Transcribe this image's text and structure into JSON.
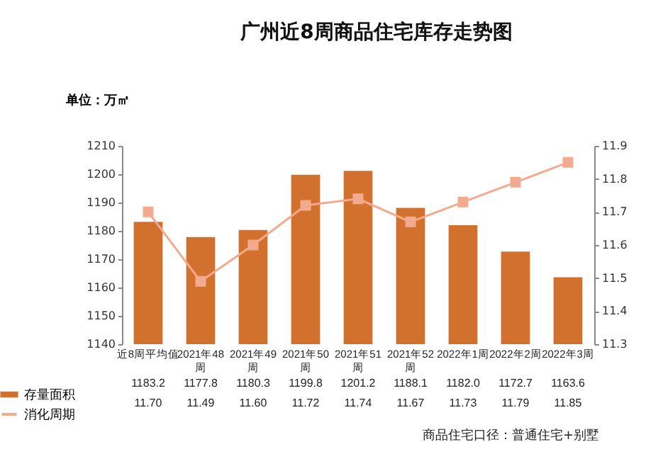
{
  "chart_data": {
    "type": "bar",
    "title": "广州近8周商品住宅库存走势图",
    "ylabel": "单位：万㎡",
    "categories": [
      "近8周平均值",
      "2021年48周",
      "2021年49周",
      "2021年50周",
      "2021年51周",
      "2021年52周",
      "2022年1周",
      "2022年2周",
      "2022年3周"
    ],
    "series": [
      {
        "name": "存量面积",
        "color": "#d2702e",
        "values": [
          1183.2,
          1177.8,
          1180.3,
          1199.8,
          1201.2,
          1188.1,
          1182.0,
          1172.7,
          1163.6
        ],
        "value_labels": [
          "1183.2",
          "1177.8",
          "1180.3",
          "1199.8",
          "1201.2",
          "1188.1",
          "1182.0",
          "1172.7",
          "1163.6"
        ]
      },
      {
        "name": "消化周期",
        "type": "line",
        "axis": "y2",
        "color": "#f2ab8e",
        "values": [
          11.7,
          11.49,
          11.6,
          11.72,
          11.74,
          11.67,
          11.73,
          11.79,
          11.85
        ],
        "value_labels": [
          "11.70",
          "11.49",
          "11.60",
          "11.72",
          "11.74",
          "11.67",
          "11.73",
          "11.79",
          "11.85"
        ]
      }
    ],
    "ylim": [
      1140,
      1210
    ],
    "yticks": [
      1140,
      1150,
      1160,
      1170,
      1180,
      1190,
      1200,
      1210
    ],
    "y2lim": [
      11.3,
      11.9
    ],
    "y2ticks": [
      11.3,
      11.4,
      11.5,
      11.6,
      11.7,
      11.8,
      11.9
    ],
    "legend": "bottom left",
    "grid": false,
    "marker": "square",
    "annotations": [
      "商品住宅口径：普通住宅+别墅"
    ]
  }
}
